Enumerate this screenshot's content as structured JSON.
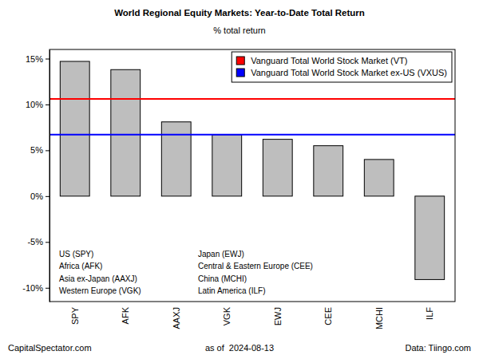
{
  "chart_data": {
    "type": "bar",
    "title": "World Regional Equity Markets: Year-to-Date Total Return",
    "subtitle": "% total return",
    "categories": [
      "SPY",
      "AFK",
      "AAXJ",
      "VGK",
      "EWJ",
      "CEE",
      "MCHI",
      "ILF"
    ],
    "values": [
      14.7,
      13.8,
      8.1,
      6.7,
      6.2,
      5.5,
      4.0,
      -9.1
    ],
    "color": "#bebebe",
    "reference_lines": [
      {
        "name": "Vanguard Total World Stock Market (VT)",
        "color": "#ff0000",
        "value": 10.6
      },
      {
        "name": "Vanguard Total World Stock Market ex-US (VXUS)",
        "color": "#0000ff",
        "value": 6.7
      }
    ],
    "legend": "top-right",
    "grid": false,
    "ylim": [
      -11.5,
      16
    ],
    "yticks": [
      {
        "value": -10,
        "label": "-10%"
      },
      {
        "value": -5,
        "label": "-5%"
      },
      {
        "value": 0,
        "label": "0%"
      },
      {
        "value": 5,
        "label": "5%"
      },
      {
        "value": 10,
        "label": "10%"
      },
      {
        "value": 15,
        "label": "15%"
      }
    ],
    "annotations": [
      "US (SPY)",
      "Africa (AFK)",
      "Asia ex-Japan (AAXJ)",
      "Western Europe (VGK)",
      "Japan (EWJ)",
      "Central & Eastern Europe (CEE)",
      "China (MCHI)",
      "Latin America (ILF)"
    ],
    "footer": [
      "CapitalSpectator.com",
      "as of  2024-08-13",
      "Data: Tiingo.com"
    ]
  }
}
